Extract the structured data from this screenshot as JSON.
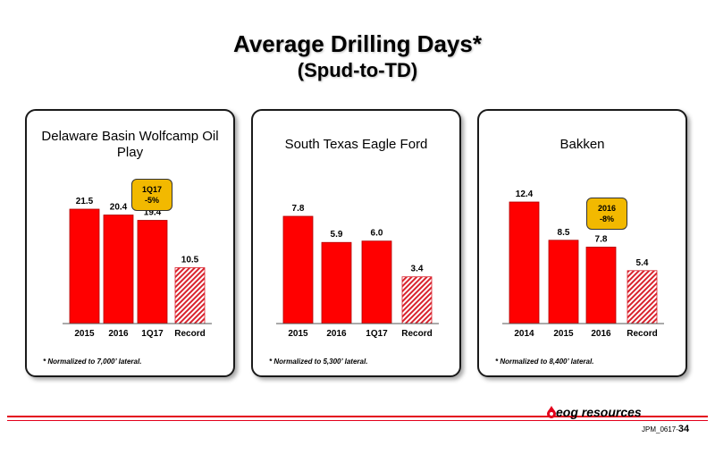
{
  "title": "Average Drilling Days*",
  "subtitle": "(Spud-to-TD)",
  "colors": {
    "bar": "#ff0000",
    "record_hatch": "#d9232e",
    "callout": "#f2b900",
    "rule": "#e3001b"
  },
  "chart_data": [
    {
      "type": "bar",
      "title": "Delaware Basin Wolfcamp Oil Play",
      "categories": [
        "2015",
        "2016",
        "1Q17",
        "Record"
      ],
      "values": [
        21.5,
        20.4,
        19.4,
        10.5
      ],
      "labels": [
        "21.5",
        "20.4",
        "19.4",
        "10.5"
      ],
      "record_index": 3,
      "callout": {
        "line1": "1Q17",
        "line2": "-5%"
      },
      "footnote": "* Normalized to 7,000’ lateral."
    },
    {
      "type": "bar",
      "title": "South Texas Eagle Ford",
      "categories": [
        "2015",
        "2016",
        "1Q17",
        "Record"
      ],
      "values": [
        7.8,
        5.9,
        6.0,
        3.4
      ],
      "labels": [
        "7.8",
        "5.9",
        "6.0",
        "3.4"
      ],
      "record_index": 3,
      "footnote": "* Normalized to 5,300’ lateral."
    },
    {
      "type": "bar",
      "title": "Bakken",
      "categories": [
        "2014",
        "2015",
        "2016",
        "Record"
      ],
      "values": [
        12.4,
        8.5,
        7.8,
        5.4
      ],
      "labels": [
        "12.4",
        "8.5",
        "7.8",
        "5.4"
      ],
      "record_index": 3,
      "callout": {
        "line1": "2016",
        "line2": "-8%"
      },
      "footnote": "* Normalized to 8,400’ lateral."
    }
  ],
  "footer": {
    "logo_text": "eog resources",
    "page_code": "JPM_0617-",
    "page_number": "34"
  }
}
